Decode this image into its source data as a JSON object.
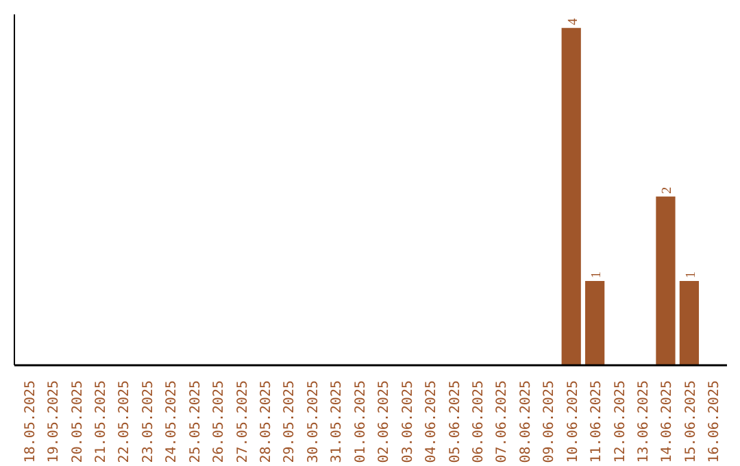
{
  "chart_data": {
    "type": "bar",
    "categories": [
      "18.05.2025",
      "19.05.2025",
      "20.05.2025",
      "21.05.2025",
      "22.05.2025",
      "23.05.2025",
      "24.05.2025",
      "25.05.2025",
      "26.05.2025",
      "27.05.2025",
      "28.05.2025",
      "29.05.2025",
      "30.05.2025",
      "31.05.2025",
      "01.06.2025",
      "02.06.2025",
      "03.06.2025",
      "04.06.2025",
      "05.06.2025",
      "06.06.2025",
      "07.06.2025",
      "08.06.2025",
      "09.06.2025",
      "10.06.2025",
      "11.06.2025",
      "12.06.2025",
      "13.06.2025",
      "14.06.2025",
      "15.06.2025",
      "16.06.2025"
    ],
    "values": [
      null,
      null,
      null,
      null,
      null,
      null,
      null,
      null,
      null,
      null,
      null,
      null,
      null,
      null,
      null,
      null,
      null,
      null,
      null,
      null,
      null,
      null,
      null,
      4,
      1,
      null,
      null,
      2,
      1,
      null
    ],
    "value_labels": [
      null,
      null,
      null,
      null,
      null,
      null,
      null,
      null,
      null,
      null,
      null,
      null,
      null,
      null,
      null,
      null,
      null,
      null,
      null,
      null,
      null,
      null,
      null,
      "4",
      "1",
      null,
      null,
      "2",
      "1",
      null
    ],
    "color": "#a0562a",
    "tick_labels": "x",
    "grid": false
  }
}
